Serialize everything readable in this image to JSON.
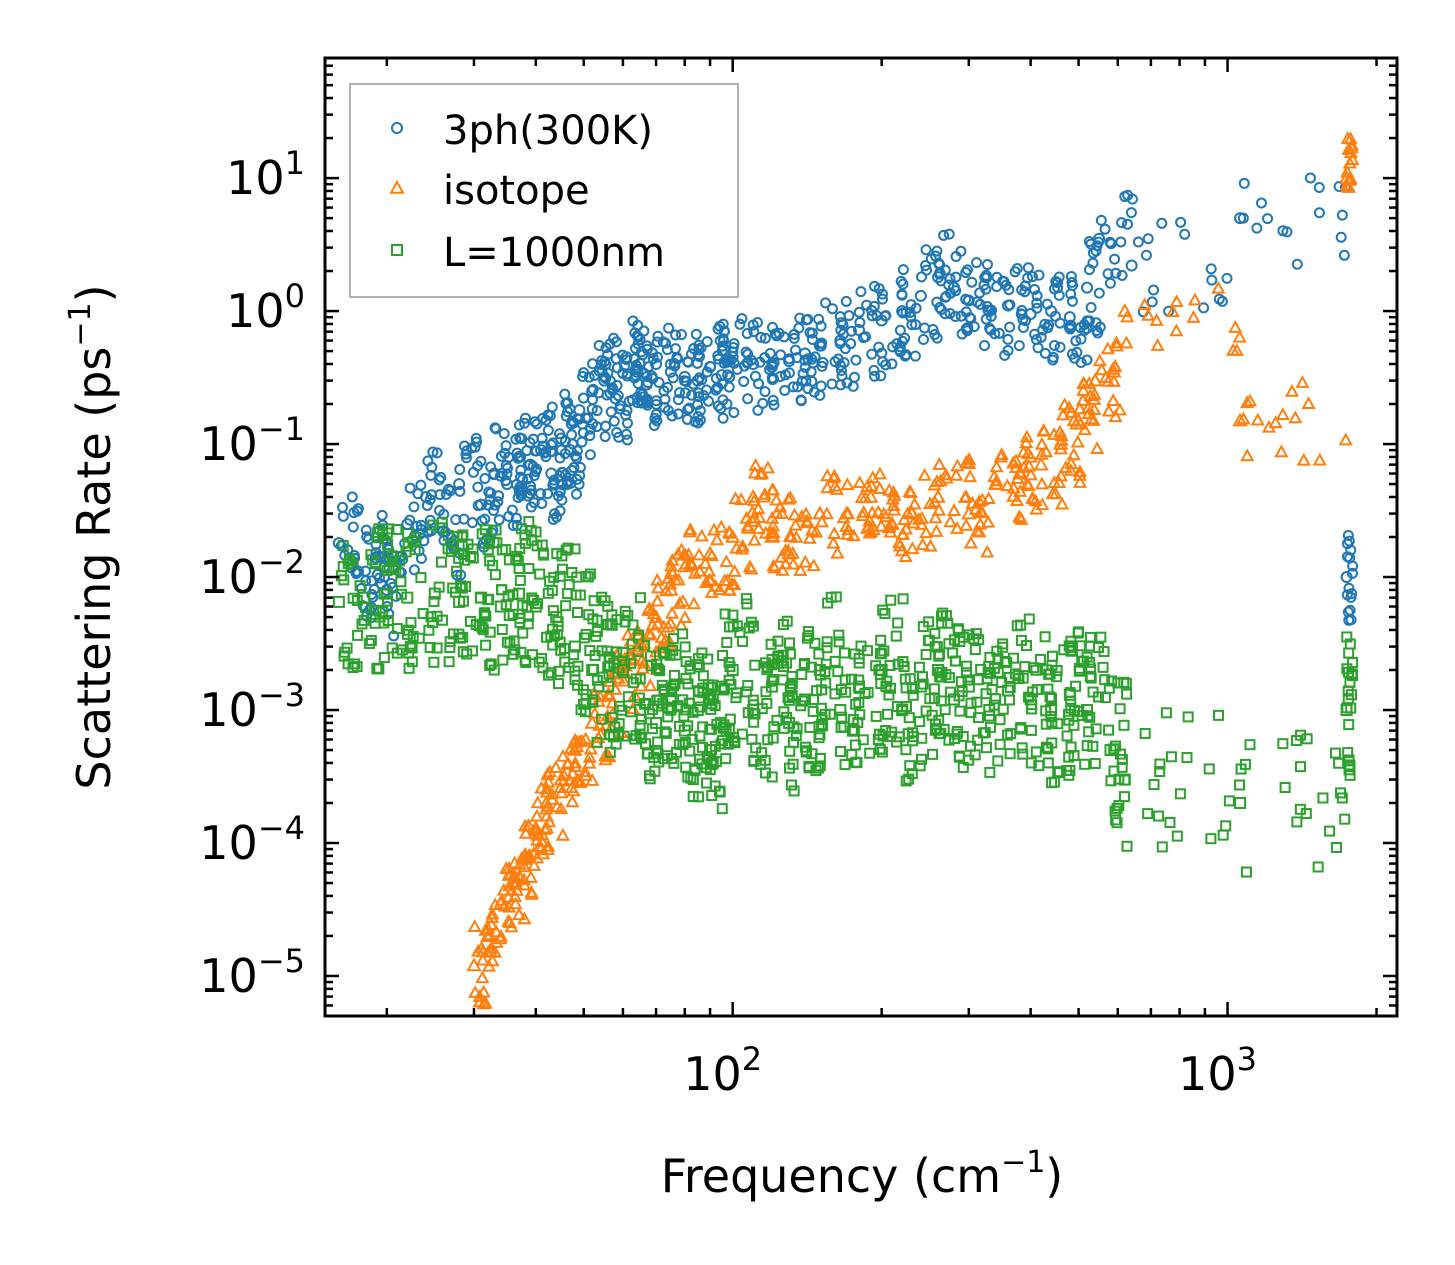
{
  "chart_data": {
    "type": "scatter",
    "xscale": "log",
    "yscale": "log",
    "xlim": [
      15,
      2200
    ],
    "ylim": [
      5e-06,
      80
    ],
    "xlabel": "Frequency (cm",
    "xlabel_sup": "−1",
    "xlabel_close": ")",
    "ylabel": "Scattering Rate (ps",
    "ylabel_sup": "−1",
    "ylabel_close": ")",
    "x_ticks": [
      {
        "value": 100,
        "base": "10",
        "exp": "2"
      },
      {
        "value": 1000,
        "base": "10",
        "exp": "3"
      }
    ],
    "y_ticks": [
      {
        "value": 1e-05,
        "base": "10",
        "exp": "−5"
      },
      {
        "value": 0.0001,
        "base": "10",
        "exp": "−4"
      },
      {
        "value": 0.001,
        "base": "10",
        "exp": "−3"
      },
      {
        "value": 0.01,
        "base": "10",
        "exp": "−2"
      },
      {
        "value": 0.1,
        "base": "10",
        "exp": "−1"
      },
      {
        "value": 1,
        "base": "10",
        "exp": "0"
      },
      {
        "value": 10,
        "base": "10",
        "exp": "1"
      }
    ],
    "legend_position": "top-left",
    "series": [
      {
        "name": "3ph(300K)",
        "marker": "circle",
        "color": "#1f77b4",
        "points": [
          [
            16,
            0.018
          ],
          [
            17.5,
            0.011
          ],
          [
            19,
            0.014
          ],
          [
            20,
            0.008
          ],
          [
            22,
            0.025
          ],
          [
            24,
            0.04
          ],
          [
            26,
            0.022
          ],
          [
            28,
            0.05
          ],
          [
            31,
            0.035
          ],
          [
            33,
            0.06
          ],
          [
            35,
            0.05
          ],
          [
            37,
            0.08
          ],
          [
            39,
            0.07
          ],
          [
            41,
            0.09
          ],
          [
            43,
            0.06
          ],
          [
            45,
            0.11
          ],
          [
            47,
            0.09
          ],
          [
            49,
            0.18
          ],
          [
            52,
            0.25
          ],
          [
            55,
            0.3
          ],
          [
            58,
            0.22
          ],
          [
            61,
            0.45
          ],
          [
            64,
            0.35
          ],
          [
            67,
            0.28
          ],
          [
            70,
            0.4
          ],
          [
            75,
            0.35
          ],
          [
            80,
            0.32
          ],
          [
            85,
            0.3
          ],
          [
            90,
            0.38
          ],
          [
            95,
            0.33
          ],
          [
            100,
            0.45
          ],
          [
            110,
            0.4
          ],
          [
            120,
            0.38
          ],
          [
            130,
            0.42
          ],
          [
            140,
            0.48
          ],
          [
            150,
            0.55
          ],
          [
            165,
            0.6
          ],
          [
            180,
            0.72
          ],
          [
            200,
            0.85
          ],
          [
            220,
            1.0
          ],
          [
            240,
            1.3
          ],
          [
            260,
            1.8
          ],
          [
            280,
            1.5
          ],
          [
            300,
            1.2
          ],
          [
            330,
            1.0
          ],
          [
            360,
            1.1
          ],
          [
            400,
            0.95
          ],
          [
            440,
            1.0
          ],
          [
            480,
            0.9
          ],
          [
            520,
            1.5
          ],
          [
            550,
            3.5
          ],
          [
            640,
            2.2
          ],
          [
            1060,
            5
          ],
          [
            1740,
            0.01
          ]
        ]
      },
      {
        "name": "isotope",
        "marker": "triangle",
        "color": "#ff7f0e",
        "points": [
          [
            30,
            1.2e-05
          ],
          [
            32,
            2e-05
          ],
          [
            34,
            3.5e-05
          ],
          [
            36,
            5e-05
          ],
          [
            38,
            8e-05
          ],
          [
            40,
            0.00013
          ],
          [
            42,
            0.0002
          ],
          [
            45,
            0.0003
          ],
          [
            48,
            0.0005
          ],
          [
            52,
            0.0008
          ],
          [
            56,
            0.0013
          ],
          [
            60,
            0.002
          ],
          [
            65,
            0.003
          ],
          [
            70,
            0.005
          ],
          [
            75,
            0.008
          ],
          [
            80,
            0.012
          ],
          [
            90,
            0.015
          ],
          [
            100,
            0.02
          ],
          [
            110,
            0.04
          ],
          [
            120,
            0.02
          ],
          [
            130,
            0.015
          ],
          [
            150,
            0.03
          ],
          [
            170,
            0.03
          ],
          [
            190,
            0.04
          ],
          [
            210,
            0.025
          ],
          [
            230,
            0.03
          ],
          [
            260,
            0.04
          ],
          [
            300,
            0.03
          ],
          [
            340,
            0.05
          ],
          [
            380,
            0.06
          ],
          [
            420,
            0.07
          ],
          [
            460,
            0.1
          ],
          [
            500,
            0.15
          ],
          [
            540,
            0.3
          ],
          [
            620,
            1.0
          ],
          [
            1060,
            0.15
          ],
          [
            1740,
            10
          ]
        ]
      },
      {
        "name": "L=1000nm",
        "marker": "square",
        "color": "#2ca02c",
        "points": [
          [
            16,
            0.0065
          ],
          [
            18,
            0.007
          ],
          [
            20,
            0.0075
          ],
          [
            22,
            0.007
          ],
          [
            25,
            0.0075
          ],
          [
            28,
            0.0065
          ],
          [
            31,
            0.007
          ],
          [
            34,
            0.006
          ],
          [
            37,
            0.0075
          ],
          [
            40,
            0.006
          ],
          [
            44,
            0.005
          ],
          [
            48,
            0.003
          ],
          [
            52,
            0.002
          ],
          [
            56,
            0.0015
          ],
          [
            60,
            0.002
          ],
          [
            65,
            0.001
          ],
          [
            70,
            0.0008
          ],
          [
            75,
            0.0012
          ],
          [
            80,
            0.0007
          ],
          [
            85,
            0.001
          ],
          [
            90,
            0.0005
          ],
          [
            95,
            0.0015
          ],
          [
            100,
            0.002
          ],
          [
            110,
            0.001
          ],
          [
            120,
            0.0015
          ],
          [
            130,
            0.0008
          ],
          [
            140,
            0.0012
          ],
          [
            150,
            0.002
          ],
          [
            165,
            0.001
          ],
          [
            180,
            0.0015
          ],
          [
            200,
            0.002
          ],
          [
            220,
            0.001
          ],
          [
            240,
            0.0015
          ],
          [
            260,
            0.002
          ],
          [
            280,
            0.0012
          ],
          [
            300,
            0.0015
          ],
          [
            330,
            0.001
          ],
          [
            360,
            0.0014
          ],
          [
            400,
            0.0012
          ],
          [
            440,
            0.001
          ],
          [
            480,
            0.0013
          ],
          [
            520,
            0.001
          ],
          [
            580,
            0.0005
          ],
          [
            620,
            0.0003
          ],
          [
            1060,
            0.0002
          ],
          [
            1740,
            0.001
          ]
        ]
      }
    ]
  }
}
